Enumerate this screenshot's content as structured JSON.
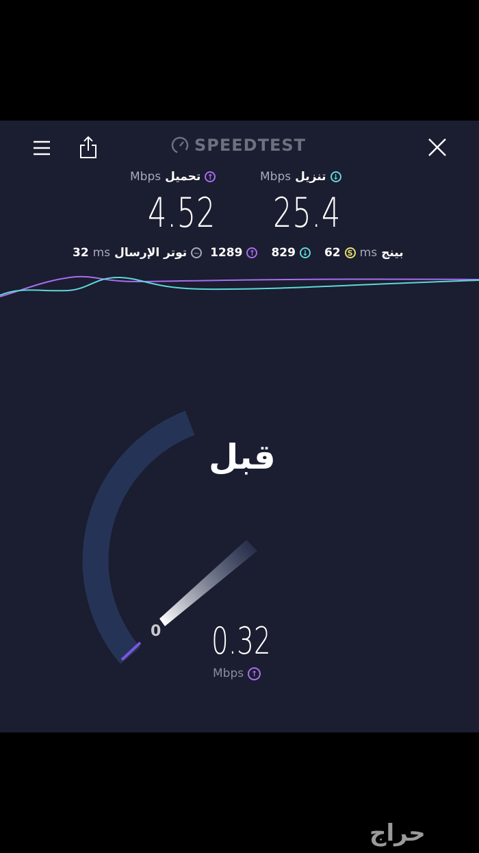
{
  "header": {
    "logo_text": "SPEEDTEST",
    "menu_icon": "hamburger-menu-icon",
    "share_icon": "share-icon",
    "close_icon": "close-icon"
  },
  "upload": {
    "label": "تحميل",
    "unit": "Mbps",
    "value": "4.52",
    "color": "#a86ef0"
  },
  "download": {
    "label": "تنزيل",
    "unit": "Mbps",
    "value": "25.4",
    "color": "#5fd8d8"
  },
  "stats": {
    "jitter_label": "توتر الإرسال",
    "jitter_value": "32",
    "jitter_unit": "ms",
    "upload_latency": "1289",
    "download_latency": "829",
    "ping_label": "بينج",
    "ping_value": "62",
    "ping_unit": "ms",
    "ping_color": "#e8e070"
  },
  "gauge": {
    "title": "قبل",
    "min_label": "0",
    "value": "0.32",
    "unit": "Mbps",
    "accent": "#7a55e0"
  },
  "watermark": "حراج"
}
